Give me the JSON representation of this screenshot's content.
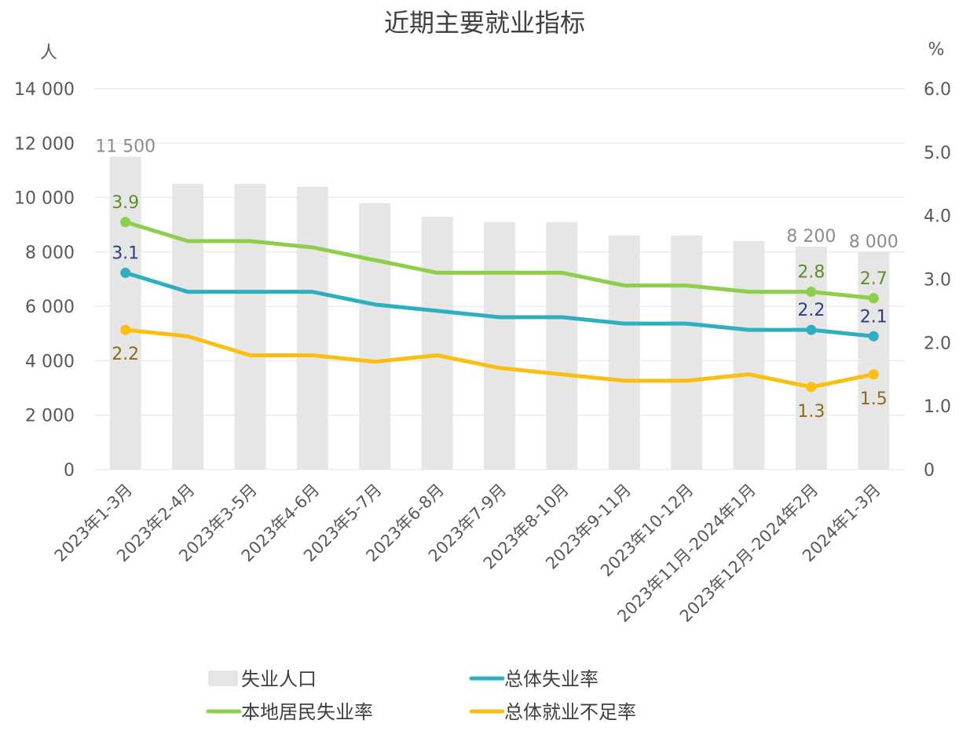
{
  "chart_data": {
    "type": "bar",
    "title": "近期主要就业指标",
    "left_axis": {
      "unit": "人",
      "ylim": [
        0,
        14000
      ],
      "ticks": [
        "0",
        "2 000",
        "4 000",
        "6 000",
        "8 000",
        "10 000",
        "12 000",
        "14 000"
      ]
    },
    "right_axis": {
      "unit": "%",
      "ylim": [
        0,
        6
      ],
      "ticks": [
        "0",
        "1.0",
        "2.0",
        "3.0",
        "4.0",
        "5.0",
        "6.0"
      ]
    },
    "categories": [
      "2023年1-3月",
      "2023年2-4月",
      "2023年3-5月",
      "2023年4-6月",
      "2023年5-7月",
      "2023年6-8月",
      "2023年7-9月",
      "2023年8-10月",
      "2023年9-11月",
      "2023年10-12月",
      "2023年11月-2024年1月",
      "2023年12月-2024年2月",
      "2024年1-3月"
    ],
    "series": [
      {
        "name": "失业人口",
        "type": "bar",
        "axis": "left",
        "color": "#e6e6e6",
        "values": [
          11500,
          10500,
          10500,
          10400,
          9800,
          9300,
          9100,
          9100,
          8600,
          8600,
          8400,
          8200,
          8000
        ],
        "labels": [
          "11 500",
          "",
          "",
          "",
          "",
          "",
          "",
          "",
          "",
          "",
          "",
          "8 200",
          "8 000"
        ]
      },
      {
        "name": "总体失业率",
        "type": "line",
        "axis": "right",
        "color": "#2eafc1",
        "label_color": "#2e3f7f",
        "values": [
          3.1,
          2.8,
          2.8,
          2.8,
          2.6,
          2.5,
          2.4,
          2.4,
          2.3,
          2.3,
          2.2,
          2.2,
          2.1
        ],
        "labels": [
          "3.1",
          "",
          "",
          "",
          "",
          "",
          "",
          "",
          "",
          "",
          "",
          "2.2",
          "2.1"
        ]
      },
      {
        "name": "本地居民失业率",
        "type": "line",
        "axis": "right",
        "color": "#8dcf4b",
        "label_color": "#5c8f2b",
        "values": [
          3.9,
          3.6,
          3.6,
          3.5,
          3.3,
          3.1,
          3.1,
          3.1,
          2.9,
          2.9,
          2.8,
          2.8,
          2.7
        ],
        "labels": [
          "3.9",
          "",
          "",
          "",
          "",
          "",
          "",
          "",
          "",
          "",
          "",
          "2.8",
          "2.7"
        ]
      },
      {
        "name": "总体就业不足率",
        "type": "line",
        "axis": "right",
        "color": "#fbbf14",
        "label_color": "#8a6d1a",
        "values": [
          2.2,
          2.1,
          1.8,
          1.8,
          1.7,
          1.8,
          1.6,
          1.5,
          1.4,
          1.4,
          1.5,
          1.3,
          1.5
        ],
        "labels": [
          "2.2",
          "",
          "",
          "",
          "",
          "",
          "",
          "",
          "",
          "",
          "",
          "1.3",
          "1.5"
        ]
      }
    ],
    "legend": {
      "position": "bottom",
      "order": [
        "失业人口",
        "总体失业率",
        "本地居民失业率",
        "总体就业不足率"
      ]
    },
    "grid": true
  }
}
